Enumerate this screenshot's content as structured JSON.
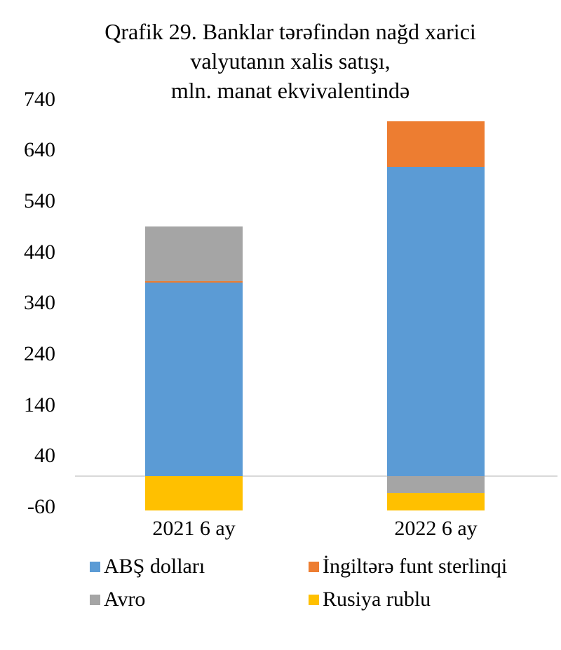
{
  "title": {
    "lines": [
      "Qrafik 29. Banklar tərəfindən nağd xarici",
      "valyutanın xalis satışı,",
      "mln. manat ekvivalentində"
    ],
    "full": "Qrafik 29. Banklar tərəfindən nağd xarici valyutanın xalis satışı, mln. manat ekvivalentində"
  },
  "chart_data": {
    "type": "bar",
    "stacked": true,
    "title": "Qrafik 29. Banklar tərəfindən nağd xarici valyutanın xalis satışı, mln. manat ekvivalentində",
    "categories": [
      "2021 6 ay",
      "2022 6 ay"
    ],
    "series": [
      {
        "name": "ABŞ dolları",
        "color": "#5B9BD5",
        "values": [
          379,
          606
        ]
      },
      {
        "name": "İngiltərə funt sterlinqi",
        "color": "#ED7D31",
        "values": [
          4,
          90
        ]
      },
      {
        "name": "Avro",
        "color": "#A5A5A5",
        "values": [
          106,
          -33
        ]
      },
      {
        "name": "Rusiya rublu",
        "color": "#FFC000",
        "values": [
          -68,
          -34
        ]
      }
    ],
    "totals": {
      "2021 6 ay": {
        "positive": 489,
        "negative": -68
      },
      "2022 6 ay": {
        "positive": 696,
        "negative": -67
      }
    },
    "y_axis": {
      "ticks": [
        740,
        640,
        540,
        440,
        340,
        240,
        140,
        40,
        -60
      ],
      "major_unit": 100,
      "ylim": [
        -80,
        740
      ],
      "gridlines": "zero-line-only",
      "zero_line_color": "#D9D9D9"
    },
    "xlabel": "",
    "ylabel": "",
    "legend_position": "bottom"
  }
}
